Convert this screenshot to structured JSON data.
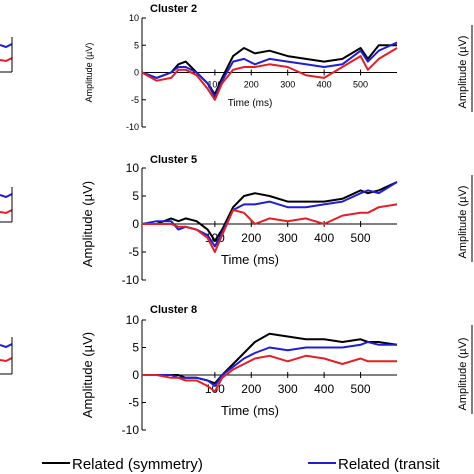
{
  "colors": {
    "symmetry": "#000000",
    "transition": "#1f1fd0",
    "unrelated": "#e01f26"
  },
  "legend": {
    "items": [
      {
        "label": "Related (symmetry)",
        "color": "#000000"
      },
      {
        "label": "Related (transit",
        "color": "#1f1fd0"
      }
    ]
  },
  "chart_data": [
    {
      "type": "line",
      "title": "Cluster 2",
      "xlabel": "Time (ms)",
      "ylabel": "Amplitude (µV)",
      "xlim": [
        -100,
        600
      ],
      "ylim": [
        -10,
        10
      ],
      "xticks": [
        100,
        200,
        300,
        400,
        500
      ],
      "yticks": [
        -10,
        -5,
        0,
        5,
        10
      ],
      "series": [
        {
          "name": "Related (symmetry)",
          "color": "#000000",
          "x": [
            -100,
            -60,
            -20,
            0,
            20,
            50,
            80,
            100,
            120,
            150,
            180,
            210,
            250,
            300,
            350,
            400,
            450,
            500,
            520,
            550,
            600
          ],
          "y": [
            0,
            -1,
            0,
            1.5,
            2,
            0,
            -2,
            -4,
            -1,
            3,
            4.5,
            3.5,
            4,
            3,
            2.5,
            2,
            2.5,
            4.5,
            2.5,
            5,
            5
          ]
        },
        {
          "name": "Related (transit",
          "color": "#1f1fd0",
          "x": [
            -100,
            -60,
            -20,
            0,
            20,
            50,
            80,
            100,
            120,
            150,
            180,
            210,
            250,
            300,
            350,
            400,
            450,
            500,
            520,
            550,
            600
          ],
          "y": [
            0,
            -1,
            0,
            1,
            1,
            0,
            -2,
            -4.5,
            -1.5,
            2,
            2.5,
            1.5,
            2.5,
            2,
            1.5,
            1,
            1.5,
            4,
            2,
            4,
            5.5
          ]
        },
        {
          "name": "",
          "color": "#e01f26",
          "x": [
            -100,
            -60,
            -20,
            0,
            20,
            50,
            80,
            100,
            120,
            150,
            180,
            210,
            250,
            300,
            350,
            400,
            450,
            500,
            520,
            550,
            600
          ],
          "y": [
            0,
            -1.5,
            -1,
            0.5,
            0.5,
            -0.5,
            -3,
            -5,
            -2,
            0.5,
            1,
            1,
            1.5,
            1,
            -0.5,
            -1,
            1,
            3,
            0.5,
            2.5,
            4.5
          ]
        }
      ]
    },
    {
      "type": "line",
      "title": "Cluster 5",
      "xlabel": "Time (ms)",
      "ylabel": "Amplitude (µV)",
      "xlim": [
        -100,
        600
      ],
      "ylim": [
        -10,
        10
      ],
      "xticks": [
        100,
        200,
        300,
        400,
        500
      ],
      "yticks": [
        -10,
        -5,
        0,
        5,
        10
      ],
      "series": [
        {
          "name": "Related (symmetry)",
          "color": "#000000",
          "x": [
            -100,
            -60,
            -20,
            0,
            20,
            50,
            80,
            100,
            120,
            150,
            180,
            210,
            250,
            300,
            350,
            400,
            450,
            500,
            520,
            550,
            600
          ],
          "y": [
            0,
            0,
            1,
            0.5,
            1,
            0.5,
            -1,
            -3,
            -1,
            3,
            5,
            5.5,
            5,
            4,
            4,
            4,
            4.5,
            6,
            5.5,
            6,
            7.5
          ]
        },
        {
          "name": "Related (transit",
          "color": "#1f1fd0",
          "x": [
            -100,
            -60,
            -20,
            0,
            20,
            50,
            80,
            100,
            120,
            150,
            180,
            210,
            250,
            300,
            350,
            400,
            450,
            500,
            520,
            550,
            600
          ],
          "y": [
            0,
            0.5,
            0.5,
            -1,
            -0.5,
            -1,
            -2,
            -4,
            -1.5,
            2.5,
            3.5,
            3.5,
            4,
            3,
            3,
            3.5,
            4,
            5.5,
            6,
            5.5,
            7.5
          ]
        },
        {
          "name": "",
          "color": "#e01f26",
          "x": [
            -100,
            -60,
            -20,
            0,
            20,
            50,
            80,
            100,
            120,
            150,
            180,
            210,
            250,
            300,
            350,
            400,
            450,
            500,
            520,
            550,
            600
          ],
          "y": [
            0,
            0,
            0,
            -0.5,
            -0.5,
            -1,
            -2.5,
            -5,
            -2,
            2.5,
            2,
            0,
            1,
            0.5,
            1,
            0,
            1.5,
            2,
            2,
            3,
            3.5
          ]
        }
      ]
    },
    {
      "type": "line",
      "title": "Cluster 8",
      "xlabel": "Time (ms)",
      "ylabel": "Amplitude (µV)",
      "xlim": [
        -100,
        600
      ],
      "ylim": [
        -10,
        10
      ],
      "xticks": [
        100,
        200,
        300,
        400,
        500
      ],
      "yticks": [
        -10,
        -5,
        0,
        5,
        10
      ],
      "series": [
        {
          "name": "Related (symmetry)",
          "color": "#000000",
          "x": [
            -100,
            -60,
            -20,
            0,
            20,
            50,
            80,
            100,
            120,
            150,
            180,
            210,
            250,
            300,
            350,
            400,
            450,
            500,
            520,
            550,
            600
          ],
          "y": [
            0,
            0,
            0,
            0,
            -0.5,
            -0.5,
            -1,
            -1.5,
            0,
            2,
            4,
            6,
            7.5,
            7,
            6.5,
            6.5,
            6,
            6.5,
            6,
            6,
            5.5
          ]
        },
        {
          "name": "Related (transit",
          "color": "#1f1fd0",
          "x": [
            -100,
            -60,
            -20,
            0,
            20,
            50,
            80,
            100,
            120,
            150,
            180,
            210,
            250,
            300,
            350,
            400,
            450,
            500,
            520,
            550,
            600
          ],
          "y": [
            0,
            0,
            0,
            -0.5,
            -0.5,
            -0.5,
            -1,
            -2,
            0,
            1.5,
            3,
            4,
            5,
            4.5,
            5,
            5,
            5,
            5.5,
            6,
            5.5,
            5.5
          ]
        },
        {
          "name": "",
          "color": "#e01f26",
          "x": [
            -100,
            -60,
            -20,
            0,
            20,
            50,
            80,
            100,
            120,
            150,
            180,
            210,
            250,
            300,
            350,
            400,
            450,
            500,
            520,
            550,
            600
          ],
          "y": [
            0,
            0,
            -0.5,
            -0.5,
            -1,
            -1,
            -2,
            -3,
            -0.5,
            1,
            2,
            3,
            3.5,
            2.5,
            3.5,
            3,
            2,
            3,
            2.5,
            2.5,
            2.5
          ]
        }
      ]
    }
  ]
}
